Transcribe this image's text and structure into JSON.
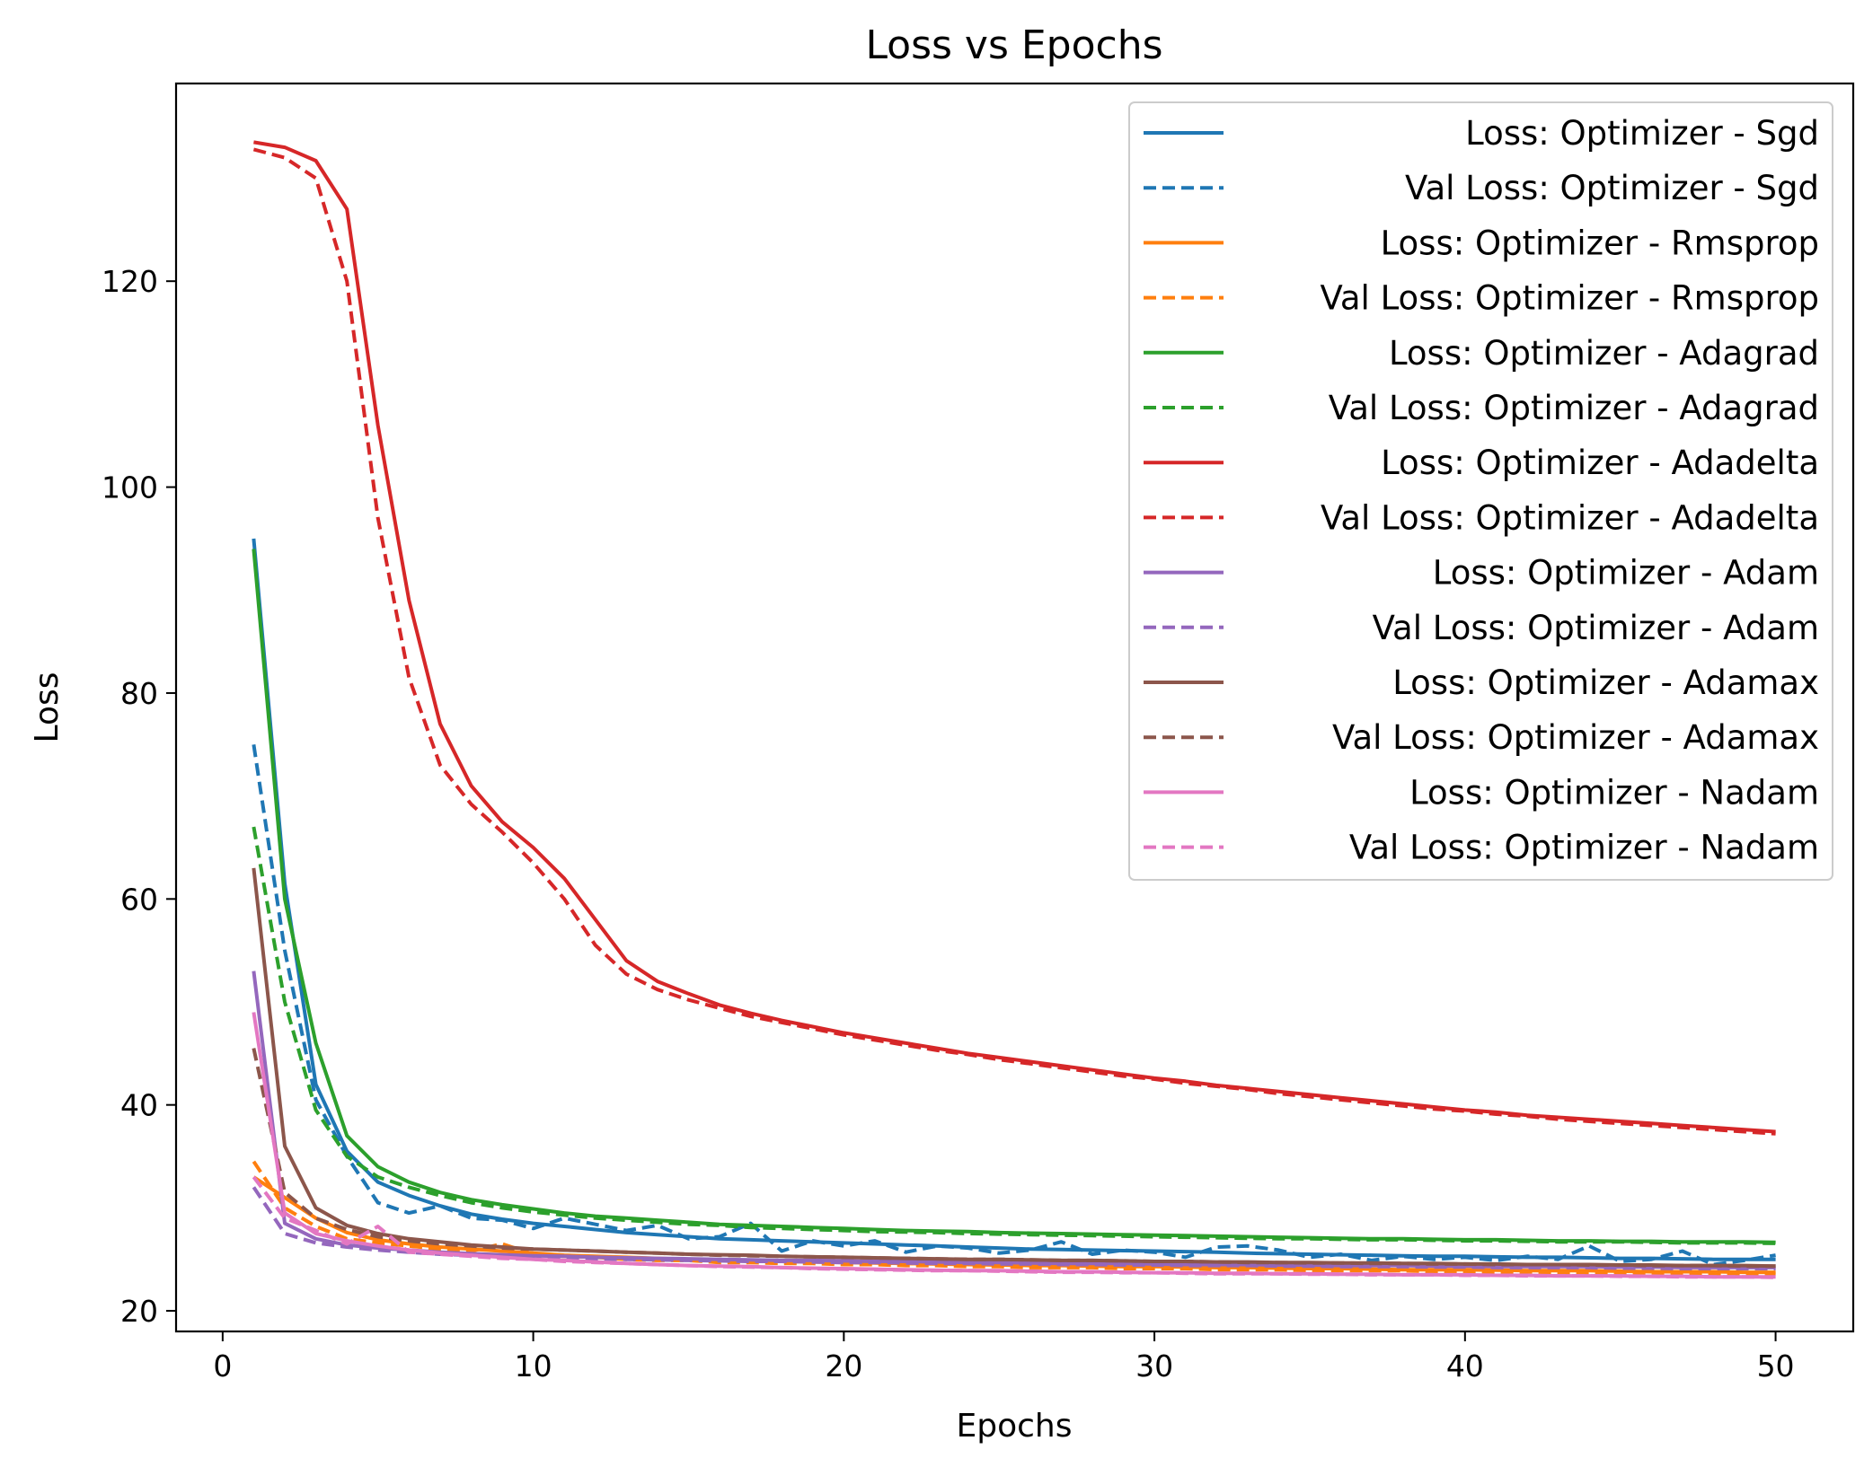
{
  "chart_data": {
    "type": "line",
    "title": "Loss vs Epochs",
    "xlabel": "Epochs",
    "ylabel": "Loss",
    "xlim": [
      -1.5,
      52.5
    ],
    "ylim": [
      18,
      139.2
    ],
    "xticks": [
      0,
      10,
      20,
      30,
      40,
      50
    ],
    "yticks": [
      20,
      40,
      60,
      80,
      100,
      120
    ],
    "grid": false,
    "legend_position": "upper right",
    "x": [
      1,
      2,
      3,
      4,
      5,
      6,
      7,
      8,
      9,
      10,
      11,
      12,
      13,
      14,
      15,
      16,
      17,
      18,
      19,
      20,
      21,
      22,
      23,
      24,
      25,
      26,
      27,
      28,
      29,
      30,
      31,
      32,
      33,
      34,
      35,
      36,
      37,
      38,
      39,
      40,
      41,
      42,
      43,
      44,
      45,
      46,
      47,
      48,
      49,
      50
    ],
    "series": [
      {
        "name": "Loss: Optimizer - Sgd",
        "color": "#1f77b4",
        "style": "solid",
        "values": [
          95.0,
          61.5,
          42.0,
          35.5,
          32.5,
          31.2,
          30.2,
          29.4,
          28.9,
          28.5,
          28.2,
          27.9,
          27.6,
          27.4,
          27.2,
          27.0,
          26.9,
          26.8,
          26.7,
          26.6,
          26.5,
          26.4,
          26.3,
          26.2,
          26.1,
          26.0,
          25.95,
          25.9,
          25.85,
          25.8,
          25.75,
          25.7,
          25.6,
          25.55,
          25.5,
          25.45,
          25.4,
          25.35,
          25.3,
          25.3,
          25.25,
          25.2,
          25.2,
          25.15,
          25.1,
          25.1,
          25.05,
          25.0,
          25.0,
          25.0
        ]
      },
      {
        "name": "Val Loss: Optimizer - Sgd",
        "color": "#1f77b4",
        "style": "dashed",
        "values": [
          75.0,
          55.0,
          40.5,
          35.0,
          30.5,
          29.5,
          30.2,
          29.0,
          28.8,
          28.0,
          29.0,
          28.4,
          27.8,
          28.3,
          27.0,
          27.2,
          28.5,
          25.8,
          26.8,
          26.3,
          26.8,
          25.7,
          26.3,
          26.1,
          25.6,
          25.9,
          26.7,
          25.5,
          25.9,
          25.7,
          25.2,
          26.2,
          26.3,
          25.9,
          25.2,
          25.5,
          24.9,
          25.3,
          25.0,
          25.2,
          24.9,
          25.3,
          25.0,
          26.3,
          24.8,
          25.0,
          25.8,
          24.5,
          24.9,
          25.4
        ]
      },
      {
        "name": "Loss: Optimizer - Rmsprop",
        "color": "#ff7f0e",
        "style": "solid",
        "values": [
          33.0,
          31.0,
          29.0,
          27.6,
          26.9,
          26.5,
          26.2,
          26.0,
          25.8,
          25.6,
          25.4,
          25.3,
          25.2,
          25.1,
          25.0,
          24.9,
          24.85,
          24.8,
          24.75,
          24.7,
          24.65,
          24.6,
          24.55,
          24.5,
          24.45,
          24.4,
          24.4,
          24.35,
          24.3,
          24.3,
          24.25,
          24.2,
          24.2,
          24.15,
          24.1,
          24.1,
          24.05,
          24.0,
          24.0,
          24.0,
          23.95,
          23.9,
          23.9,
          23.9,
          23.85,
          23.8,
          23.8,
          23.8,
          23.75,
          23.75
        ]
      },
      {
        "name": "Val Loss: Optimizer - Rmsprop",
        "color": "#ff7f0e",
        "style": "dashed",
        "values": [
          34.5,
          30.0,
          28.2,
          27.0,
          26.6,
          26.3,
          26.0,
          25.8,
          26.5,
          25.5,
          25.3,
          25.2,
          25.0,
          24.9,
          24.9,
          24.7,
          24.7,
          24.6,
          24.6,
          24.5,
          24.5,
          24.4,
          24.4,
          24.3,
          24.3,
          24.2,
          24.2,
          24.2,
          24.1,
          24.1,
          24.1,
          24.0,
          24.0,
          24.0,
          23.9,
          23.9,
          23.9,
          23.9,
          23.8,
          23.8,
          23.8,
          23.8,
          23.7,
          23.7,
          23.7,
          23.7,
          23.6,
          23.6,
          23.6,
          23.6
        ]
      },
      {
        "name": "Loss: Optimizer - Adagrad",
        "color": "#2ca02c",
        "style": "solid",
        "values": [
          94.0,
          60.0,
          46.0,
          37.0,
          34.0,
          32.5,
          31.5,
          30.8,
          30.3,
          29.9,
          29.5,
          29.2,
          29.0,
          28.8,
          28.6,
          28.4,
          28.3,
          28.2,
          28.1,
          28.0,
          27.9,
          27.8,
          27.75,
          27.7,
          27.6,
          27.55,
          27.5,
          27.45,
          27.4,
          27.35,
          27.3,
          27.25,
          27.2,
          27.15,
          27.1,
          27.05,
          27.0,
          27.0,
          26.95,
          26.9,
          26.9,
          26.85,
          26.8,
          26.8,
          26.75,
          26.75,
          26.7,
          26.7,
          26.7,
          26.65
        ]
      },
      {
        "name": "Val Loss: Optimizer - Adagrad",
        "color": "#2ca02c",
        "style": "dashed",
        "values": [
          67.0,
          50.0,
          39.5,
          35.0,
          33.0,
          32.0,
          31.2,
          30.5,
          30.0,
          29.6,
          29.3,
          29.0,
          28.8,
          28.6,
          28.4,
          28.3,
          28.1,
          28.0,
          27.9,
          27.8,
          27.7,
          27.65,
          27.6,
          27.5,
          27.45,
          27.4,
          27.35,
          27.3,
          27.25,
          27.2,
          27.15,
          27.1,
          27.05,
          27.0,
          27.0,
          26.95,
          26.9,
          26.9,
          26.85,
          26.8,
          26.8,
          26.75,
          26.7,
          26.7,
          26.7,
          26.65,
          26.6,
          26.6,
          26.6,
          26.55
        ]
      },
      {
        "name": "Loss: Optimizer - Adadelta",
        "color": "#d62728",
        "style": "solid",
        "values": [
          133.5,
          133.0,
          131.7,
          127.0,
          106.0,
          89.0,
          77.0,
          71.0,
          67.5,
          65.0,
          62.0,
          58.0,
          54.0,
          52.0,
          50.8,
          49.7,
          48.9,
          48.2,
          47.6,
          47.0,
          46.5,
          46.0,
          45.5,
          45.0,
          44.6,
          44.2,
          43.8,
          43.4,
          43.0,
          42.6,
          42.3,
          41.9,
          41.6,
          41.3,
          41.0,
          40.7,
          40.4,
          40.1,
          39.8,
          39.5,
          39.3,
          39.0,
          38.8,
          38.6,
          38.4,
          38.2,
          38.0,
          37.8,
          37.6,
          37.4
        ]
      },
      {
        "name": "Val Loss: Optimizer - Adadelta",
        "color": "#d62728",
        "style": "dashed",
        "values": [
          132.8,
          132.0,
          130.0,
          120.0,
          97.0,
          81.5,
          73.0,
          69.2,
          66.5,
          63.5,
          60.0,
          55.5,
          52.7,
          51.2,
          50.2,
          49.4,
          48.6,
          48.0,
          47.4,
          46.8,
          46.3,
          45.8,
          45.3,
          44.9,
          44.4,
          44.0,
          43.6,
          43.2,
          42.8,
          42.5,
          42.1,
          41.8,
          41.5,
          41.1,
          40.8,
          40.5,
          40.2,
          39.9,
          39.6,
          39.4,
          39.1,
          38.9,
          38.6,
          38.4,
          38.2,
          38.0,
          37.8,
          37.6,
          37.4,
          37.2
        ]
      },
      {
        "name": "Loss: Optimizer - Adam",
        "color": "#9467bd",
        "style": "solid",
        "values": [
          53.0,
          28.5,
          27.0,
          26.4,
          26.1,
          25.9,
          25.7,
          25.55,
          25.45,
          25.35,
          25.3,
          25.2,
          25.15,
          25.1,
          25.05,
          25.0,
          24.95,
          24.9,
          24.9,
          24.85,
          24.8,
          24.8,
          24.75,
          24.7,
          24.7,
          24.65,
          24.6,
          24.6,
          24.6,
          24.55,
          24.5,
          24.5,
          24.5,
          24.45,
          24.45,
          24.4,
          24.4,
          24.4,
          24.35,
          24.35,
          24.3,
          24.3,
          24.3,
          24.3,
          24.25,
          24.25,
          24.2,
          24.2,
          24.2,
          24.2
        ]
      },
      {
        "name": "Val Loss: Optimizer - Adam",
        "color": "#9467bd",
        "style": "dashed",
        "values": [
          32.0,
          27.5,
          26.6,
          26.2,
          25.9,
          25.7,
          25.5,
          25.4,
          25.3,
          25.2,
          25.1,
          25.05,
          25.0,
          24.95,
          24.9,
          24.85,
          24.8,
          24.8,
          24.75,
          24.7,
          24.7,
          24.65,
          24.6,
          24.6,
          24.55,
          24.55,
          24.5,
          24.5,
          24.45,
          24.45,
          24.4,
          24.4,
          24.4,
          24.35,
          24.35,
          24.3,
          24.3,
          24.3,
          24.25,
          24.25,
          24.2,
          24.2,
          24.2,
          24.2,
          24.15,
          24.15,
          24.1,
          24.1,
          24.1,
          24.1
        ]
      },
      {
        "name": "Loss: Optimizer - Adamax",
        "color": "#8c564b",
        "style": "solid",
        "values": [
          63.0,
          36.0,
          30.0,
          28.3,
          27.5,
          27.0,
          26.7,
          26.4,
          26.2,
          26.0,
          25.9,
          25.8,
          25.7,
          25.6,
          25.5,
          25.45,
          25.4,
          25.3,
          25.25,
          25.2,
          25.15,
          25.1,
          25.05,
          25.0,
          25.0,
          24.95,
          24.9,
          24.9,
          24.85,
          24.8,
          24.8,
          24.75,
          24.75,
          24.7,
          24.7,
          24.65,
          24.65,
          24.6,
          24.6,
          24.55,
          24.55,
          24.5,
          24.5,
          24.5,
          24.45,
          24.45,
          24.4,
          24.4,
          24.4,
          24.35
        ]
      },
      {
        "name": "Val Loss: Optimizer - Adamax",
        "color": "#8c564b",
        "style": "dashed",
        "values": [
          45.5,
          31.5,
          29.0,
          27.9,
          27.2,
          26.8,
          26.5,
          26.3,
          26.1,
          26.0,
          25.9,
          25.8,
          25.7,
          25.6,
          25.5,
          25.4,
          25.35,
          25.3,
          25.25,
          25.2,
          25.15,
          25.1,
          25.05,
          25.0,
          25.0,
          24.95,
          24.9,
          24.9,
          24.85,
          24.8,
          24.8,
          24.75,
          24.7,
          24.7,
          24.65,
          24.65,
          24.6,
          24.6,
          24.55,
          24.55,
          24.5,
          24.5,
          24.5,
          24.45,
          24.45,
          24.4,
          24.4,
          24.4,
          24.35,
          24.35
        ]
      },
      {
        "name": "Loss: Optimizer - Nadam",
        "color": "#e377c2",
        "style": "solid",
        "values": [
          49.0,
          29.5,
          27.5,
          26.8,
          26.3,
          25.9,
          25.6,
          25.4,
          25.2,
          25.0,
          24.9,
          24.75,
          24.6,
          24.5,
          24.4,
          24.35,
          24.3,
          24.2,
          24.15,
          24.1,
          24.05,
          24.0,
          23.95,
          23.9,
          23.9,
          23.85,
          23.8,
          23.8,
          23.75,
          23.7,
          23.7,
          23.65,
          23.65,
          23.6,
          23.6,
          23.55,
          23.55,
          23.5,
          23.5,
          23.5,
          23.45,
          23.45,
          23.4,
          23.4,
          23.4,
          23.35,
          23.35,
          23.3,
          23.3,
          23.3
        ]
      },
      {
        "name": "Val Loss: Optimizer - Nadam",
        "color": "#e377c2",
        "style": "dashed",
        "values": [
          33.0,
          29.0,
          27.8,
          26.5,
          28.2,
          25.7,
          25.5,
          25.3,
          25.1,
          25.0,
          24.8,
          24.7,
          24.6,
          24.5,
          24.4,
          24.3,
          24.25,
          24.2,
          24.1,
          24.05,
          24.0,
          23.95,
          23.9,
          23.9,
          23.85,
          23.8,
          23.75,
          23.75,
          23.7,
          23.7,
          23.65,
          23.6,
          23.6,
          23.6,
          23.55,
          23.55,
          23.5,
          23.5,
          23.5,
          23.45,
          23.45,
          23.4,
          23.4,
          23.4,
          23.35,
          23.35,
          23.3,
          23.3,
          23.3,
          23.25
        ]
      }
    ]
  }
}
